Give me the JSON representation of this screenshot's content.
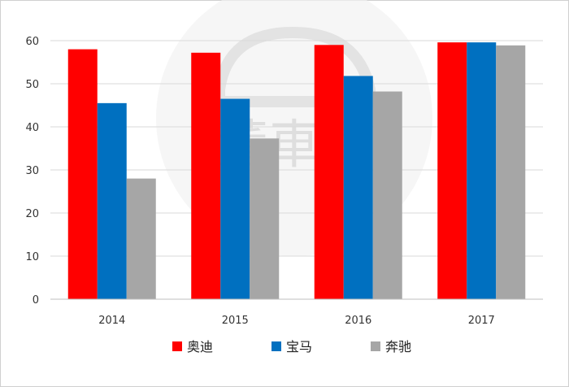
{
  "watermark": {
    "text": "董車會"
  },
  "chart_data": {
    "type": "bar",
    "categories": [
      "2014",
      "2015",
      "2016",
      "2017"
    ],
    "series": [
      {
        "name": "奥迪",
        "color": "#ff0000",
        "values": [
          58,
          57.2,
          59,
          59.6
        ]
      },
      {
        "name": "宝马",
        "color": "#0070c0",
        "values": [
          45.5,
          46.5,
          51.8,
          59.6
        ]
      },
      {
        "name": "奔驰",
        "color": "#a6a6a6",
        "values": [
          28,
          37.3,
          48.2,
          58.9
        ]
      }
    ],
    "ylim": [
      0,
      60
    ],
    "yticks": [
      "0",
      "10",
      "20",
      "30",
      "40",
      "50",
      "60"
    ],
    "grid": true,
    "legend": "bottom",
    "title": "",
    "xlabel": "",
    "ylabel": ""
  }
}
